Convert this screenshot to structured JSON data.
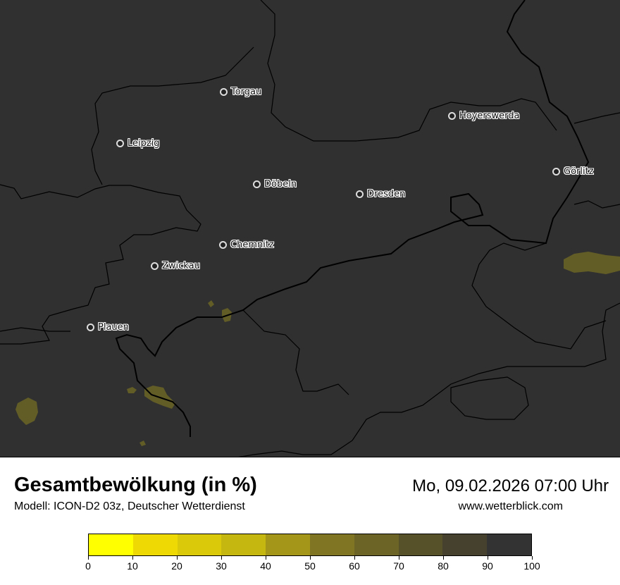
{
  "title": "Gesamtbewölkung (in %)",
  "subtitle": "Modell: ICON-D2 03z, Deutscher Wetterdienst",
  "datetime": "Mo, 09.02.2026 07:00 Uhr",
  "website": "www.wetterblick.com",
  "map": {
    "background_color": "#303030",
    "cities": [
      {
        "name": "Torgau"
      },
      {
        "name": "Leipzig"
      },
      {
        "name": "Hoyerswerda"
      },
      {
        "name": "Görlitz"
      },
      {
        "name": "Döbeln"
      },
      {
        "name": "Dresden"
      },
      {
        "name": "Chemnitz"
      },
      {
        "name": "Zwickau"
      },
      {
        "name": "Plauen"
      }
    ]
  },
  "legend": {
    "unit": "%",
    "ticks": [
      "0",
      "10",
      "20",
      "30",
      "40",
      "50",
      "60",
      "70",
      "80",
      "90",
      "100"
    ],
    "colors": [
      "#ffff00",
      "#eed905",
      "#dac90a",
      "#c5b710",
      "#a39618",
      "#7f7522",
      "#6b6426",
      "#57512a",
      "#45412e",
      "#333333"
    ]
  }
}
